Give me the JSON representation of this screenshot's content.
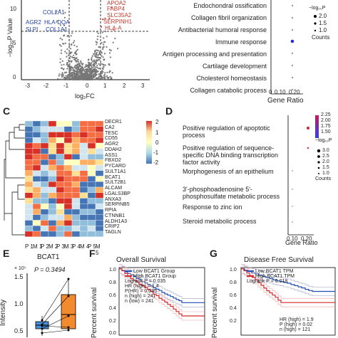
{
  "colors": {
    "up": "#c0392b",
    "down": "#1f3fa5",
    "ns": "#777777",
    "low": "#1f4fb4",
    "high": "#d62728",
    "km_ci": "#9aa0c8"
  },
  "panel_a": {
    "ylabel": "−log₁₀P Value",
    "xlabel": "log₂FC",
    "x_ticks": [
      "-3",
      "-2",
      "-1",
      "0",
      "1",
      "2",
      "3"
    ],
    "y_ticks": [
      "10",
      "5",
      "0"
    ],
    "labels_down": [
      "COL2A1",
      "AGR2",
      "HLA-DQA",
      "SLPI",
      "COL1A1"
    ],
    "labels_up": [
      "APOA2",
      "FABP4",
      "SLC35A2",
      "SERPINH1",
      "HLA-A"
    ]
  },
  "panel_b": {
    "terms": [
      "Endochondral ossification",
      "Collagen fibril organization",
      "Antibacterial humoral response",
      "Immune response",
      "Antigen processing and presentation",
      "Cartilage development",
      "Cholesterol homeostasis",
      "Collagen catabolic process"
    ],
    "xlabel": "Gene Ratio",
    "x_ticks": [
      "0",
      "0.10",
      "0.20"
    ],
    "legend_title": "−log₁₀P",
    "legend_counts_title": "Counts",
    "count_values": [
      "2.0",
      "1.5",
      "1.0"
    ]
  },
  "panel_c": {
    "letter": "C",
    "genes": [
      "DECR1",
      "CA2",
      "TESC",
      "CD55",
      "AGR2",
      "DDAH2",
      "ASS1",
      "FBXO2",
      "PYCARD",
      "SULT1A1",
      "BCAT1",
      "SULT2B1",
      "ALCAM",
      "LGALS3BP",
      "ANXA3",
      "SERPINB5",
      "RPIA",
      "CTNNB1",
      "ALDH1A3",
      "CRIP2",
      "TAGLN"
    ],
    "samples": [
      "P 1",
      "M 1",
      "P 2",
      "M 2",
      "P 3",
      "M 3",
      "P 4",
      "M 4",
      "P 5",
      "M 5"
    ],
    "scale": [
      "2",
      "1",
      "0",
      "-1",
      "-2"
    ]
  },
  "panel_d": {
    "letter": "D",
    "terms": [
      "Positive regulation of apoptotic process",
      "Positive regulation of sequence-specific DNA binding transcription factor activity",
      "Morphogenesis of an epithelium",
      "3'-phosphoadenosine 5'-phosphosulfate metabolic process",
      "Response to zinc ion",
      "Steroid metabolic process"
    ],
    "xlabel": "Gene Ratio",
    "x_ticks": [
      "0.10",
      "0.20"
    ],
    "legend_title": "−log₁₀P",
    "legend_values": [
      "2.25",
      "2.00",
      "1.75",
      "1.50"
    ],
    "legend_counts_title": "Counts",
    "count_values": [
      "3.0",
      "2.5",
      "2.0",
      "1.5",
      "1.0"
    ]
  },
  "panel_e": {
    "letter": "E",
    "title": "BCAT1",
    "pvalue": "P = 0.3494",
    "ylabel": "Intensity",
    "y_ticks": [
      "1.5",
      "1.0",
      "0.5"
    ],
    "y_exp": "× 10⁵"
  },
  "panel_f": {
    "letter": "F",
    "title": "Overall Survival",
    "legend": [
      "Low BCAT1 Group",
      "High BCAT1 Group"
    ],
    "stats": [
      "Logrank P = 0.035",
      "HR (high) = 1.4",
      "P(HR) = 0.035",
      "n (high) = 241",
      "n (low) = 241"
    ],
    "ylabel": "Percent survival",
    "y_ticks": [
      "1.0",
      "0.8",
      "0.6",
      "0.4",
      "0.2",
      "0.0"
    ]
  },
  "panel_g": {
    "letter": "G",
    "title": "Disease Free Survival",
    "legend": [
      "Low BCAT1 TPM",
      "High BCAT1 TPM"
    ],
    "stats": [
      "Logrank P = 0.018",
      "HR (high) = 1.9",
      "P (high) = 0.02",
      "n (high) = 121"
    ],
    "ylabel": "Percent survival",
    "y_ticks": [
      "1.0",
      "0.8",
      "0.6",
      "0.4",
      "0.2"
    ]
  }
}
